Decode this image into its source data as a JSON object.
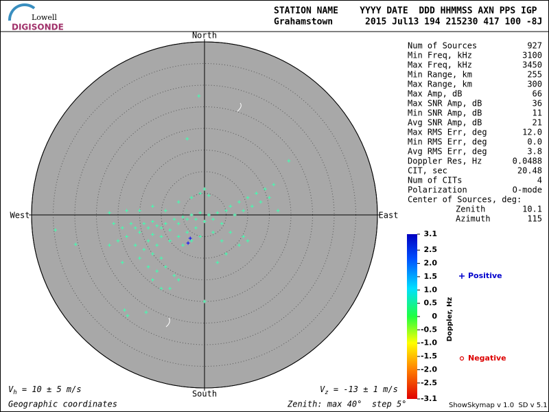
{
  "logo": {
    "top": "Lowell",
    "bottom": "DIGISONDE"
  },
  "header": {
    "labels": "STATION NAME    YYYY DATE  DDD HHMMSS AXN PPS IGP",
    "values": "Grahamstown      2015 Jul13 194 215230 417 100 -8J"
  },
  "stats": {
    "rows": [
      [
        "Num of Sources",
        "927"
      ],
      [
        "Min Freq, kHz",
        "3100"
      ],
      [
        "Max Freq, kHz",
        "3450"
      ],
      [
        "Min Range, km",
        "255"
      ],
      [
        "Max Range, km",
        "300"
      ],
      [
        "Max Amp, dB",
        "66"
      ],
      [
        "Max SNR Amp, dB",
        "36"
      ],
      [
        "Min SNR Amp, dB",
        "11"
      ],
      [
        "Avg SNR Amp, dB",
        "21"
      ],
      [
        "Max RMS Err, deg",
        "12.0"
      ],
      [
        "Min RMS Err, deg",
        "0.0"
      ],
      [
        "Avg RMS Err, deg",
        "3.8"
      ],
      [
        "Doppler Res, Hz",
        "0.0488"
      ],
      [
        "CIT, sec",
        "20.48"
      ],
      [
        "Num of CITs",
        "4"
      ],
      [
        "Polarization",
        "O-mode"
      ]
    ],
    "center_title": "Center of Sources, deg:",
    "center_rows": [
      [
        "Zenith",
        "10.1"
      ],
      [
        "Azimuth",
        "115"
      ]
    ]
  },
  "chart_data": {
    "type": "skymap",
    "directions": {
      "north": "North",
      "south": "South",
      "east": "East",
      "west": "West"
    },
    "xlim": [
      -40,
      40
    ],
    "ylim": [
      -40,
      40
    ],
    "rings": [
      5,
      10,
      15,
      20,
      25,
      30,
      35,
      40
    ],
    "points": [
      {
        "color": "#40ffb0",
        "x": [
          -14,
          -13,
          -12,
          -11,
          -10,
          -9,
          -8,
          -15,
          -16,
          -12,
          -10,
          -13,
          -11,
          -14,
          -12,
          -10,
          -15,
          -13,
          -11,
          -16,
          -18,
          -17,
          -19,
          -20,
          -7,
          -6,
          -5,
          -4,
          -3,
          -2,
          -1,
          0,
          1,
          2,
          3,
          4,
          5,
          6,
          7,
          8,
          9,
          10,
          11,
          12,
          13,
          14,
          15,
          16,
          17,
          -8,
          -6,
          -5,
          -4,
          -3,
          -2,
          -1,
          2,
          4,
          6,
          8,
          10,
          -9,
          -7,
          -8,
          -6,
          -12,
          -10,
          -19,
          -22,
          -21,
          -22,
          -18,
          -15,
          -12,
          -9,
          -6,
          -3,
          -1,
          0,
          1,
          -4,
          -1.3,
          19.5,
          -34.5,
          -29.8,
          -13.5,
          -17.8,
          -18.5,
          5,
          9,
          3,
          0
        ],
        "y": [
          -2,
          -3,
          -1.5,
          -2.5,
          -3,
          -2,
          -3.5,
          -4,
          -3,
          -4.5,
          -5,
          -6,
          -7,
          -8,
          -9,
          -10,
          -10,
          -12,
          -13,
          -7,
          -5,
          -2,
          -3,
          -6,
          -1,
          -2,
          -0.5,
          -1,
          0,
          -1,
          0.5,
          -1.5,
          0,
          -1,
          0.5,
          -2,
          1,
          2,
          0,
          3,
          1,
          4,
          2,
          5,
          3,
          6,
          4,
          7,
          1,
          -6,
          -5,
          -7,
          -4,
          -6,
          -3,
          -5,
          -4,
          -6,
          -4,
          -7,
          -6,
          -12,
          -14,
          -17,
          -15,
          -15,
          -17,
          -11,
          -7,
          -2,
          0.5,
          1,
          1,
          2,
          1,
          3,
          4,
          5,
          6,
          4.5,
          17.6,
          27.5,
          12.5,
          -3.5,
          -6.8,
          -22.5,
          -23.3,
          -22,
          -9,
          -5,
          -11,
          -20
        ]
      },
      {
        "color": "#0000ff",
        "x": [
          -3.3,
          -3.8
        ],
        "y": [
          -5.4,
          -6.5
        ]
      }
    ],
    "colorbar": {
      "label": "Doppler, Hz",
      "clim": [
        -3.1,
        3.1
      ],
      "ticks": [
        3.1,
        2.5,
        {
          "value": 2,
          "label": "2.0"
        },
        1.5,
        {
          "value": 1,
          "label": "1.0"
        },
        0.5,
        0,
        -0.5,
        {
          "value": -1,
          "label": "-1.0"
        },
        -1.5,
        {
          "value": -2,
          "label": "-2.0"
        },
        -2.5,
        -3.1
      ]
    },
    "legend": [
      {
        "name": "Positive",
        "color": "#0000cc",
        "marker": "+"
      },
      {
        "name": "Negative",
        "color": "#dd0000",
        "marker": "o"
      }
    ],
    "vh": {
      "symbol": "V",
      "sub": "h",
      "text": " = 10 ± 5 m/s"
    },
    "vz": {
      "symbol": "V",
      "sub": "z",
      "text": " = -13 ± 1 m/s"
    },
    "coords": "Geographic coordinates",
    "zenith_note": "Zenith: max 40°  step 5°",
    "version": "ShowSkymap v 1.0  SD v 5.1"
  }
}
